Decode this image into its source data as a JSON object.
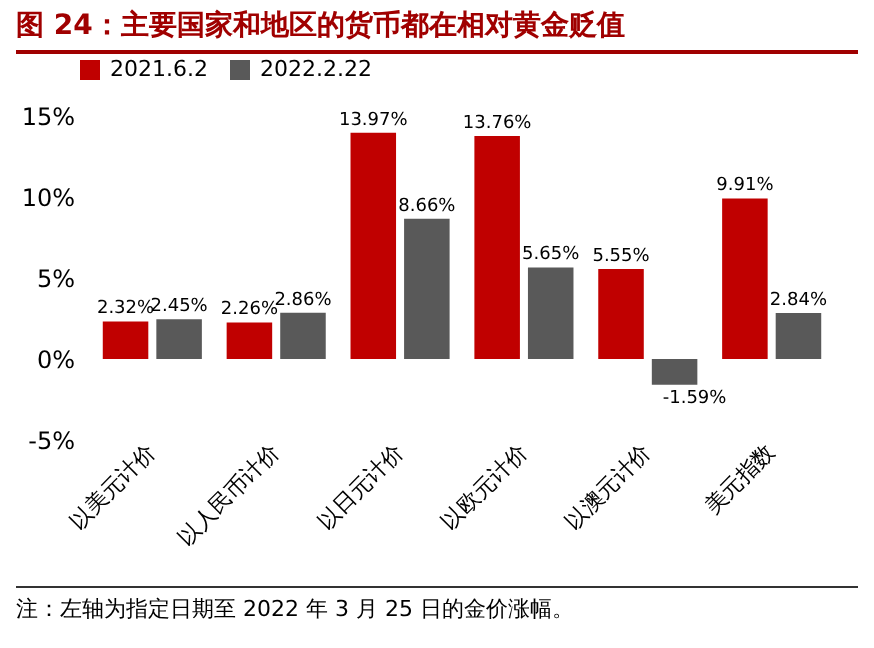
{
  "chart_data": {
    "type": "bar",
    "title": "图 24：主要国家和地区的货币都在相对黄金贬值",
    "categories": [
      "以美元计价",
      "以人民币计价",
      "以日元计价",
      "以欧元计价",
      "以澳元计价",
      "美元指数"
    ],
    "series": [
      {
        "name": "2021.6.2",
        "color": "#c00000",
        "values": [
          2.32,
          2.26,
          13.97,
          13.76,
          5.55,
          9.91
        ],
        "value_labels": [
          "2.32%",
          "2.26%",
          "13.97%",
          "13.76%",
          "5.55%",
          "9.91%"
        ]
      },
      {
        "name": "2022.2.22",
        "color": "#595959",
        "values": [
          2.45,
          2.86,
          8.66,
          5.65,
          -1.59,
          2.84
        ],
        "value_labels": [
          "2.45%",
          "2.86%",
          "8.66%",
          "5.65%",
          "-1.59%",
          "2.84%"
        ]
      }
    ],
    "ylim": [
      -5,
      15
    ],
    "yticks": [
      {
        "value": -5,
        "label": "-5%"
      },
      {
        "value": 0,
        "label": "0%"
      },
      {
        "value": 5,
        "label": "5%"
      },
      {
        "value": 10,
        "label": "10%"
      },
      {
        "value": 15,
        "label": "15%"
      }
    ],
    "legend": "top",
    "grid": false,
    "annotations": [
      "注：左轴为指定日期至 2022 年 3 月 25 日的金价涨幅。"
    ]
  }
}
